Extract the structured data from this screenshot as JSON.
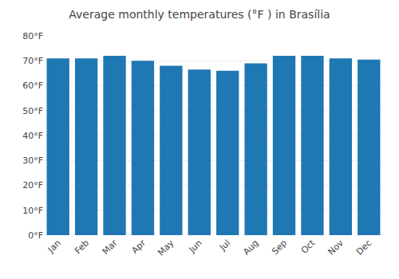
{
  "chart_data": {
    "type": "bar",
    "title": "Average monthly temperatures (°F ) in Brasília",
    "categories": [
      "Jan",
      "Feb",
      "Mar",
      "Apr",
      "May",
      "Jun",
      "Jul",
      "Aug",
      "Sep",
      "Oct",
      "Nov",
      "Dec"
    ],
    "values": [
      71,
      71,
      72,
      70,
      68,
      66.5,
      66,
      69,
      72,
      72,
      71,
      70.5
    ],
    "ylim": [
      0,
      80
    ],
    "yticks": [
      {
        "value": 0,
        "label": "0°F"
      },
      {
        "value": 10,
        "label": "10°F"
      },
      {
        "value": 20,
        "label": "20°F"
      },
      {
        "value": 30,
        "label": "30°F"
      },
      {
        "value": 40,
        "label": "40°F"
      },
      {
        "value": 50,
        "label": "50°F"
      },
      {
        "value": 60,
        "label": "60°F"
      },
      {
        "value": 70,
        "label": "70°F"
      },
      {
        "value": 80,
        "label": "80°F"
      }
    ],
    "grid": true
  }
}
